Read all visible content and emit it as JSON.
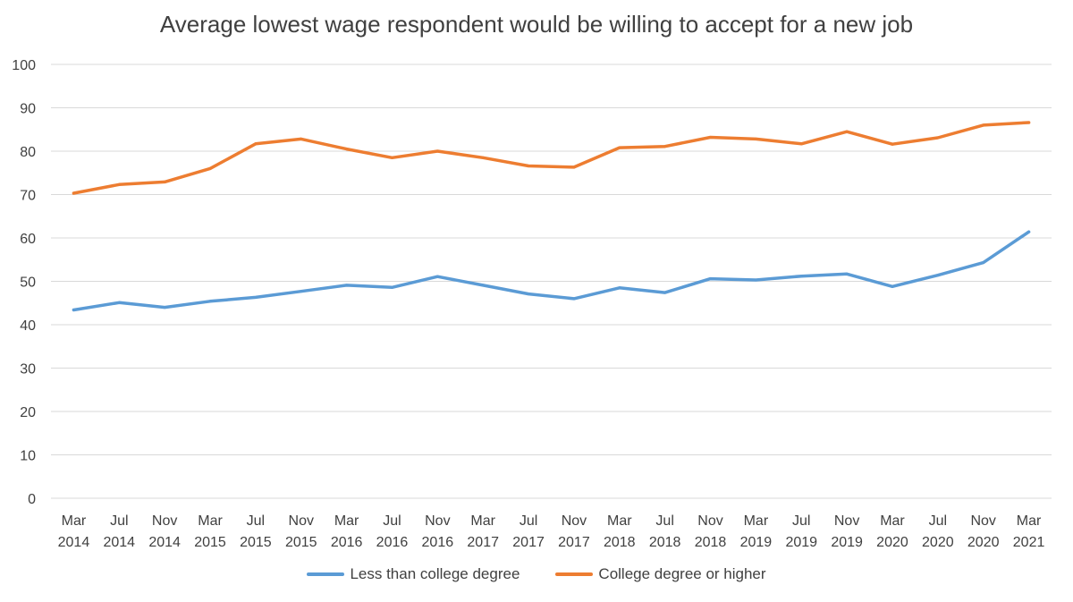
{
  "chart_data": {
    "type": "line",
    "title": "Average lowest wage respondent would be willing to accept for a new job",
    "xlabel": "",
    "ylabel": "",
    "ylim": [
      0,
      100
    ],
    "yticks": [
      "0",
      "10",
      "20",
      "30",
      "40",
      "50",
      "60",
      "70",
      "80",
      "90",
      "100"
    ],
    "grid": true,
    "legend_position": "bottom",
    "categories": [
      "Mar 2014",
      "Jul 2014",
      "Nov 2014",
      "Mar 2015",
      "Jul 2015",
      "Nov 2015",
      "Mar 2016",
      "Jul 2016",
      "Nov 2016",
      "Mar 2017",
      "Jul 2017",
      "Nov 2017",
      "Mar 2018",
      "Jul 2018",
      "Nov 2018",
      "Mar 2019",
      "Jul 2019",
      "Nov 2019",
      "Mar 2020",
      "Jul 2020",
      "Nov 2020",
      "Mar 2021"
    ],
    "series": [
      {
        "name": "Less than college degree",
        "color": "#5b9bd5",
        "values": [
          43.4,
          45.1,
          44.0,
          45.4,
          46.3,
          47.7,
          49.1,
          48.6,
          51.1,
          49.1,
          47.1,
          46.0,
          48.5,
          47.4,
          50.6,
          50.3,
          51.2,
          51.7,
          48.8,
          51.4,
          54.3,
          61.4
        ]
      },
      {
        "name": "College degree or higher",
        "color": "#ed7d31",
        "values": [
          70.3,
          72.3,
          72.9,
          76.0,
          81.7,
          82.8,
          80.5,
          78.5,
          80.0,
          78.5,
          76.6,
          76.3,
          80.8,
          81.1,
          83.2,
          82.8,
          81.7,
          84.5,
          81.6,
          83.1,
          86.0,
          86.6
        ]
      }
    ]
  }
}
